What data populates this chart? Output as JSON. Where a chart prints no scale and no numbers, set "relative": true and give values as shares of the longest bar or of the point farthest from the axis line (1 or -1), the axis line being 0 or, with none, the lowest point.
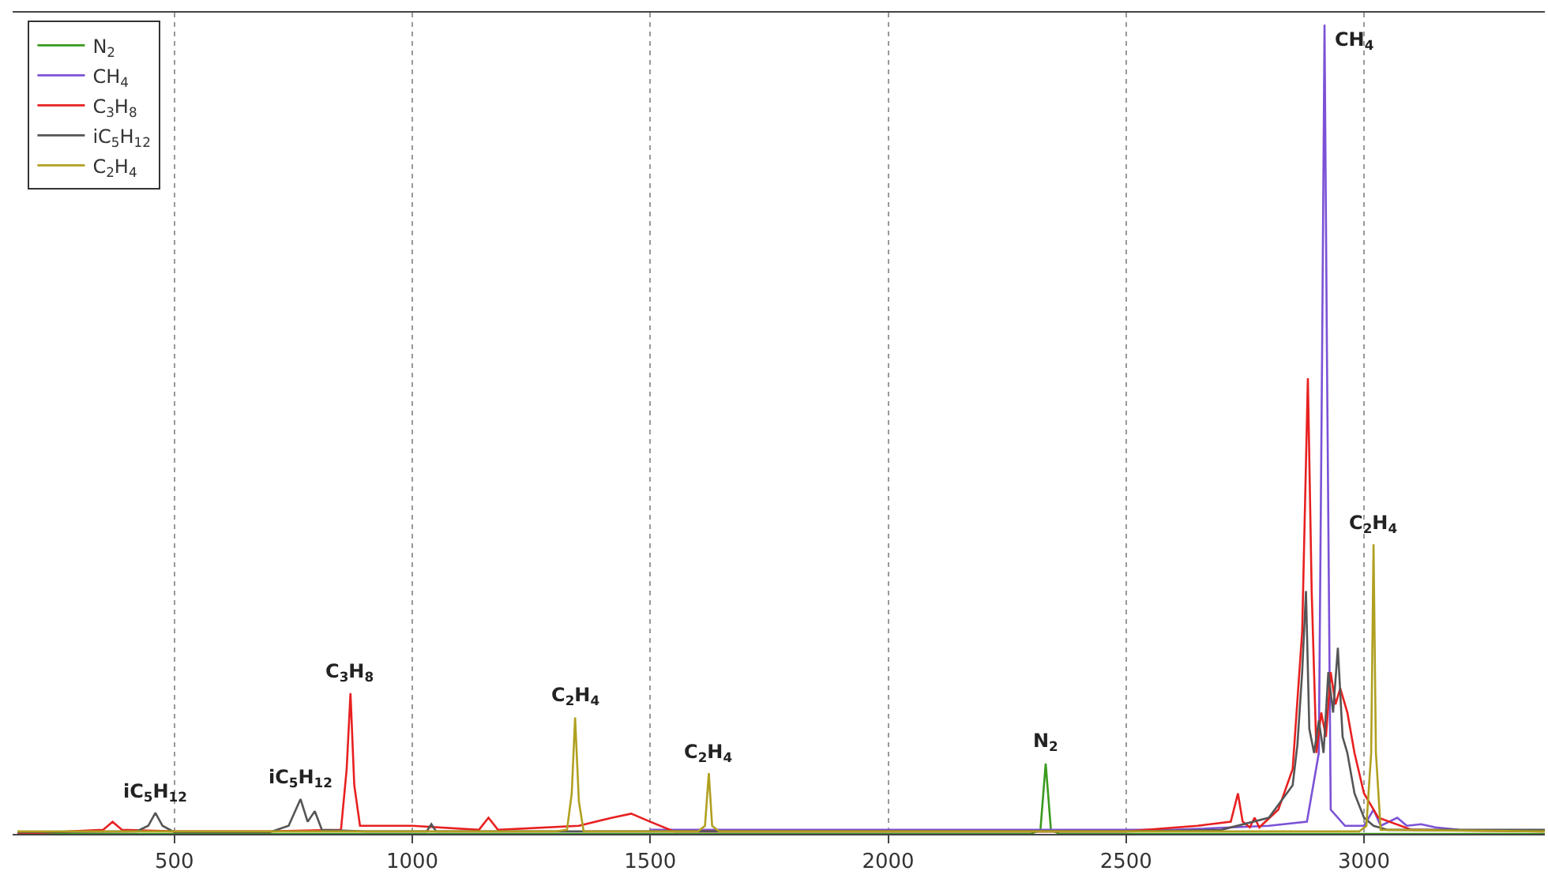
{
  "chart_data": {
    "type": "line",
    "relative": true,
    "xlim": [
      160,
      3380
    ],
    "xticks": [
      500,
      1000,
      1500,
      2000,
      2500,
      3000
    ],
    "grid": "x",
    "legend": "top left",
    "line_style": "solid",
    "marker": "none",
    "series": [
      {
        "name": "N$_{2}$",
        "color": "#3a9a1e",
        "x": [
          170,
          2300,
          2320,
          2326,
          2331,
          2336,
          2342,
          2360,
          3380
        ],
        "values": [
          0,
          0,
          0.005,
          0.05,
          0.087,
          0.05,
          0.005,
          0,
          0
        ]
      },
      {
        "name": "CH$_{4}$",
        "color": "#7b52d6",
        "x": [
          1500,
          2600,
          2800,
          2880,
          2905,
          2912,
          2917,
          2922,
          2930,
          2960,
          3000,
          3020,
          3035,
          3070,
          3090,
          3120,
          3150,
          3200
        ],
        "values": [
          0.005,
          0.005,
          0.01,
          0.015,
          0.1,
          0.6,
          1.0,
          0.6,
          0.03,
          0.01,
          0.01,
          0.03,
          0.01,
          0.02,
          0.01,
          0.012,
          0.008,
          0.005
        ]
      },
      {
        "name": "C$_{3}$H$_{8}$",
        "color": "#e82020",
        "x": [
          170,
          350,
          370,
          390,
          500,
          700,
          850,
          862,
          870,
          878,
          890,
          1000,
          1140,
          1160,
          1180,
          1350,
          1420,
          1460,
          1500,
          1550,
          2500,
          2650,
          2720,
          2735,
          2745,
          2760,
          2770,
          2780,
          2820,
          2850,
          2870,
          2882,
          2890,
          2900,
          2910,
          2920,
          2930,
          2940,
          2950,
          2965,
          2980,
          3000,
          3030,
          3100,
          3380
        ],
        "values": [
          0,
          0.005,
          0.015,
          0.005,
          0.003,
          0.003,
          0.005,
          0.08,
          0.174,
          0.06,
          0.01,
          0.01,
          0.005,
          0.02,
          0.005,
          0.01,
          0.02,
          0.025,
          0.015,
          0.003,
          0.003,
          0.01,
          0.015,
          0.05,
          0.015,
          0.008,
          0.02,
          0.008,
          0.03,
          0.08,
          0.25,
          0.563,
          0.3,
          0.1,
          0.15,
          0.12,
          0.2,
          0.16,
          0.18,
          0.15,
          0.1,
          0.05,
          0.02,
          0.005,
          0.003
        ]
      },
      {
        "name": "iC$_{5}$H$_{12}$",
        "color": "#555555",
        "x": [
          170,
          420,
          445,
          460,
          475,
          500,
          700,
          740,
          765,
          780,
          795,
          810,
          900,
          1030,
          1040,
          1050,
          1500,
          2500,
          2700,
          2800,
          2850,
          2860,
          2870,
          2878,
          2885,
          2895,
          2905,
          2915,
          2925,
          2935,
          2945,
          2955,
          2965,
          2980,
          3000,
          3020,
          3050,
          3380
        ],
        "values": [
          0.002,
          0.003,
          0.01,
          0.026,
          0.01,
          0.002,
          0.002,
          0.01,
          0.043,
          0.015,
          0.028,
          0.005,
          0.003,
          0.003,
          0.012,
          0.003,
          0.003,
          0.003,
          0.005,
          0.02,
          0.06,
          0.11,
          0.2,
          0.3,
          0.13,
          0.1,
          0.14,
          0.1,
          0.2,
          0.15,
          0.23,
          0.12,
          0.1,
          0.05,
          0.02,
          0.01,
          0.005,
          0.005
        ]
      },
      {
        "name": "C$_{2}$H$_{4}$",
        "color": "#b0a020",
        "x": [
          170,
          1300,
          1325,
          1335,
          1342,
          1350,
          1360,
          1600,
          1615,
          1623,
          1630,
          1645,
          2990,
          3005,
          3015,
          3020,
          3025,
          3035,
          3380
        ],
        "values": [
          0.003,
          0.003,
          0.005,
          0.05,
          0.144,
          0.04,
          0.003,
          0.003,
          0.01,
          0.075,
          0.01,
          0.003,
          0.003,
          0.01,
          0.1,
          0.358,
          0.1,
          0.005,
          0.003
        ]
      }
    ],
    "annotations": [
      {
        "text": "iC$_{5}$H$_{12}$",
        "x": 460,
        "y": 0.026
      },
      {
        "text": "iC$_{5}$H$_{12}$",
        "x": 765,
        "y": 0.043
      },
      {
        "text": "C$_{3}$H$_{8}$",
        "x": 870,
        "y": 0.174
      },
      {
        "text": "C$_{2}$H$_{4}$",
        "x": 1342,
        "y": 0.144
      },
      {
        "text": "C$_{2}$H$_{4}$",
        "x": 1623,
        "y": 0.075
      },
      {
        "text": "N$_{2}$",
        "x": 2331,
        "y": 0.087
      },
      {
        "text": "CH$_{4}$",
        "x": 2917,
        "y": 1.0
      },
      {
        "text": "C$_{2}$H$_{4}$",
        "x": 3020,
        "y": 0.358
      }
    ]
  }
}
